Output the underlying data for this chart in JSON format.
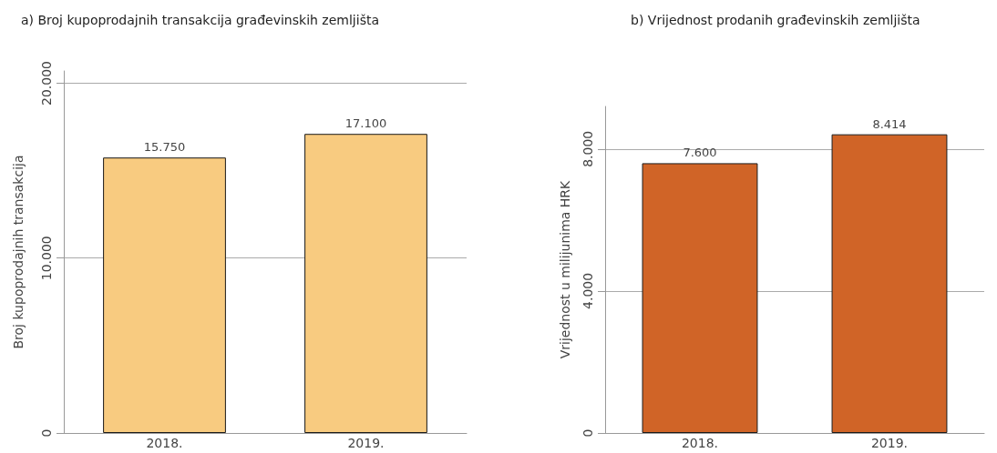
{
  "chart_data": [
    {
      "type": "bar",
      "title": "a) Broj kupoprodajnih transakcija građevinskih zemljišta",
      "ylabel": "Broj kupoprodajnih transakcija",
      "categories": [
        "2018.",
        "2019."
      ],
      "values": [
        15750,
        17100
      ],
      "value_labels": [
        "15.750",
        "17.100"
      ],
      "color": "#f8cb80",
      "ylim": [
        0,
        20700
      ],
      "yticks": [
        {
          "value": 0,
          "label": "0"
        },
        {
          "value": 10000,
          "label": "10.000"
        },
        {
          "value": 20000,
          "label": "20.000"
        }
      ],
      "grid": "y"
    },
    {
      "type": "bar",
      "title": "b) Vrijednost prodanih građevinskih zemljišta",
      "ylabel": "Vrijednost u milijunima HRK",
      "categories": [
        "2018.",
        "2019."
      ],
      "values": [
        7600,
        8414
      ],
      "value_labels": [
        "7.600",
        "8.414"
      ],
      "color": "#d06427",
      "ylim": [
        0,
        9200
      ],
      "yticks": [
        {
          "value": 0,
          "label": "0"
        },
        {
          "value": 4000,
          "label": "4.000"
        },
        {
          "value": 8000,
          "label": "8.000"
        }
      ],
      "grid": "y"
    }
  ]
}
